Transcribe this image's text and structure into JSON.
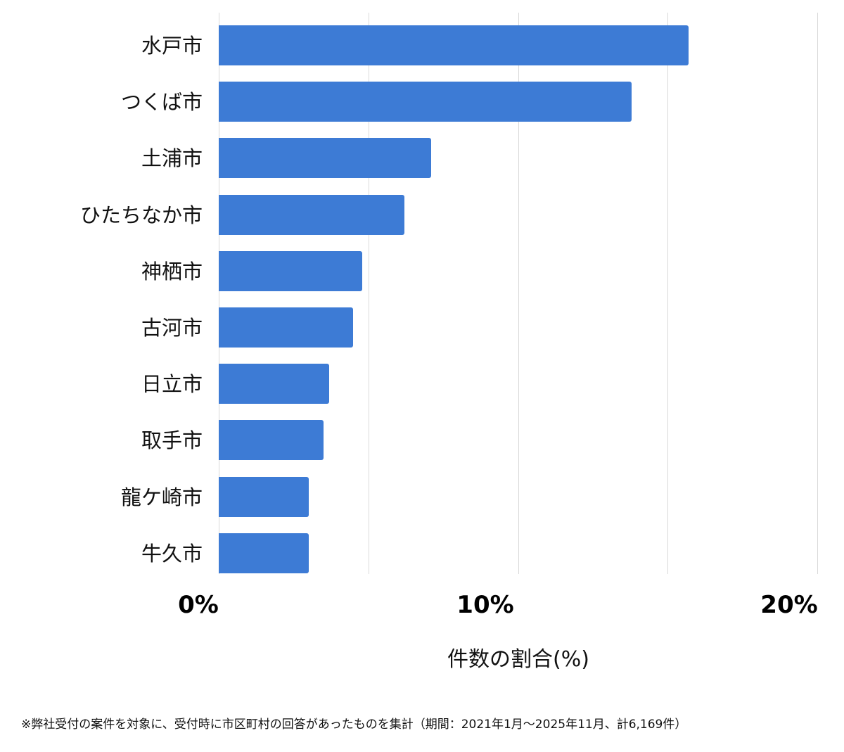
{
  "chart_data": {
    "type": "bar",
    "orientation": "horizontal",
    "title": "",
    "xlabel": "件数の割合(%)",
    "ylabel": "",
    "xlim": [
      0,
      20
    ],
    "x_ticks": [
      "0%",
      "10%",
      "20%"
    ],
    "gridlines_at": [
      0,
      5,
      10,
      15,
      20
    ],
    "grid": true,
    "legend": null,
    "categories": [
      "水戸市",
      "つくば市",
      "土浦市",
      "ひたちなか市",
      "神栖市",
      "古河市",
      "日立市",
      "取手市",
      "龍ケ崎市",
      "牛久市"
    ],
    "values": [
      15.7,
      13.8,
      7.1,
      6.2,
      4.8,
      4.5,
      3.7,
      3.5,
      3.0,
      3.0
    ],
    "bar_color": "#3d7bd5"
  },
  "axis": {
    "tick_0": "0%",
    "tick_10": "10%",
    "tick_20": "20%",
    "xlabel": "件数の割合(%)"
  },
  "footnote": "※弊社受付の案件を対象に、受付時に市区町村の回答があったものを集計（期間：2021年1月～2025年11月、計6,169件）"
}
